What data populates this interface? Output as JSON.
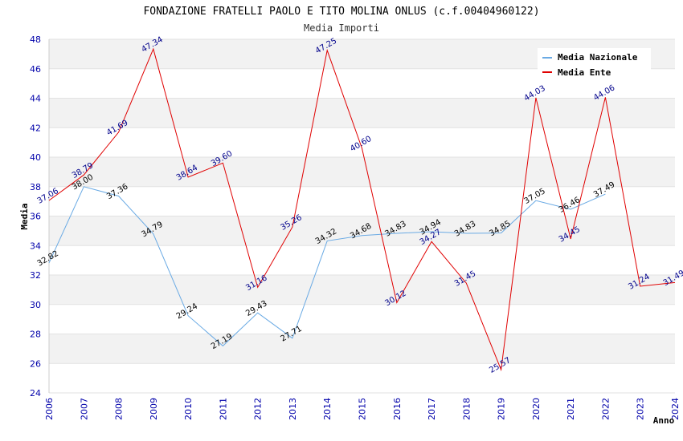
{
  "chart_data": {
    "type": "line",
    "title": "FONDAZIONE FRATELLI PAOLO E TITO MOLINA ONLUS (c.f.00404960122)",
    "subtitle": "Media Importi",
    "xlabel": "Anno",
    "ylabel": "Media",
    "ylim": [
      24,
      48
    ],
    "yticks": [
      24,
      26,
      28,
      30,
      32,
      34,
      36,
      38,
      40,
      42,
      44,
      46,
      48
    ],
    "x": [
      2006,
      2007,
      2008,
      2009,
      2010,
      2011,
      2012,
      2013,
      2014,
      2015,
      2016,
      2017,
      2018,
      2019,
      2020,
      2021,
      2022,
      2023,
      2024
    ],
    "grid": "horizontal alternating bands",
    "legend_position": "top-right",
    "series": [
      {
        "name": "Media Nazionale",
        "color": "#6aaae4",
        "label_color": "#000000",
        "x": [
          2006,
          2007,
          2008,
          2009,
          2010,
          2011,
          2012,
          2013,
          2014,
          2015,
          2016,
          2017,
          2018,
          2019,
          2020,
          2021,
          2022
        ],
        "values": [
          32.82,
          38.0,
          37.36,
          34.79,
          29.24,
          27.19,
          29.43,
          27.71,
          34.32,
          34.68,
          34.83,
          34.94,
          34.83,
          34.85,
          37.05,
          36.46,
          37.49
        ],
        "labels": [
          "32.82",
          "38.00",
          "37.36",
          "34.79",
          "29.24",
          "27.19",
          "29.43",
          "27.71",
          "34.32",
          "34.68",
          "34.83",
          "34.94",
          "34.83",
          "34.85",
          "37.05",
          "36.46",
          "37.49"
        ]
      },
      {
        "name": "Media Ente",
        "color": "#e00000",
        "label_color": "#00008b",
        "x": [
          2006,
          2007,
          2008,
          2009,
          2010,
          2011,
          2012,
          2013,
          2014,
          2015,
          2016,
          2017,
          2018,
          2019,
          2020,
          2021,
          2022,
          2023,
          2024
        ],
        "values": [
          37.06,
          38.79,
          41.69,
          47.34,
          38.64,
          39.6,
          31.16,
          35.26,
          47.25,
          40.6,
          30.12,
          34.27,
          31.45,
          25.57,
          44.03,
          34.45,
          44.06,
          31.24,
          31.49
        ],
        "labels": [
          "37.06",
          "38.79",
          "41.69",
          "47.34",
          "38.64",
          "39.60",
          "31.16",
          "35.26",
          "47.25",
          "40.60",
          "30.12",
          "34.27",
          "31.45",
          "25.57",
          "44.03",
          "34.45",
          "44.06",
          "31.24",
          "31.49"
        ]
      }
    ]
  }
}
